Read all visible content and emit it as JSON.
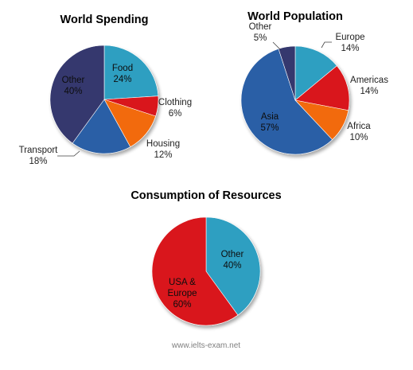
{
  "chart_data": [
    {
      "type": "pie",
      "title": "World Spending",
      "slices": [
        {
          "name": "Food",
          "value": 24,
          "label": "24%",
          "color": "#2f9fc1"
        },
        {
          "name": "Clothing",
          "value": 6,
          "label": "6%",
          "color": "#d9161b"
        },
        {
          "name": "Housing",
          "value": 12,
          "label": "12%",
          "color": "#f26a10"
        },
        {
          "name": "Transport",
          "value": 18,
          "label": "18%",
          "color": "#2a5ea6"
        },
        {
          "name": "Other",
          "value": 40,
          "label": "40%",
          "color": "#35396e"
        }
      ]
    },
    {
      "type": "pie",
      "title": "World Population",
      "slices": [
        {
          "name": "Europe",
          "value": 14,
          "label": "14%",
          "color": "#2f9fc1"
        },
        {
          "name": "Americas",
          "value": 14,
          "label": "14%",
          "color": "#d9161b"
        },
        {
          "name": "Africa",
          "value": 10,
          "label": "10%",
          "color": "#f26a10"
        },
        {
          "name": "Asia",
          "value": 57,
          "label": "57%",
          "color": "#2a5ea6"
        },
        {
          "name": "Other",
          "value": 5,
          "label": "5%",
          "color": "#35396e"
        }
      ]
    },
    {
      "type": "pie",
      "title": "Consumption of Resources",
      "slices": [
        {
          "name": "Other",
          "value": 40,
          "label": "40%",
          "color": "#2f9fc1"
        },
        {
          "name": "USA & Europe",
          "value": 60,
          "label": "60%",
          "color": "#d9161b"
        }
      ]
    }
  ],
  "watermark": "www.ielts-exam.net"
}
